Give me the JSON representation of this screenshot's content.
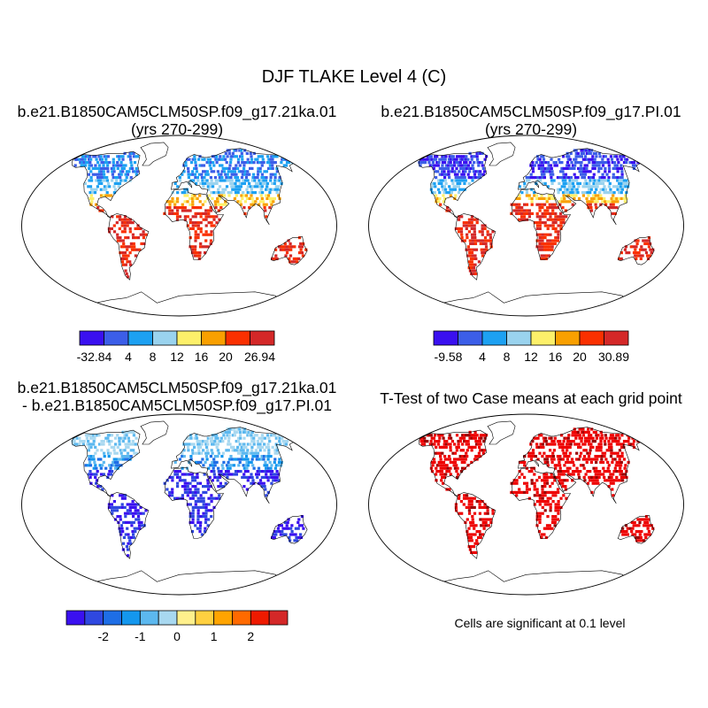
{
  "figure_title": "DJF TLAKE Level 4 (C)",
  "panels": [
    {
      "id": "p1",
      "title_line1": "b.e21.B1850CAM5CLM50SP.f09_g17.21ka.01",
      "title_line2": "(yrs 270-299)",
      "colorbar": {
        "colors": [
          "#3a10f0",
          "#3c5ee8",
          "#1da1f2",
          "#9ad3ee",
          "#fdf06a",
          "#f9a000",
          "#fa3000",
          "#d42828"
        ],
        "tick_labels": [
          "-32.84",
          "4",
          "8",
          "12",
          "16",
          "20",
          "26.94"
        ]
      }
    },
    {
      "id": "p2",
      "title_line1": "b.e21.B1850CAM5CLM50SP.f09_g17.PI.01",
      "title_line2": "(yrs 270-299)",
      "colorbar": {
        "colors": [
          "#3a10f0",
          "#3c5ee8",
          "#1da1f2",
          "#9ad3ee",
          "#fdf06a",
          "#f9a000",
          "#fa3000",
          "#d42828"
        ],
        "tick_labels": [
          "-9.58",
          "4",
          "8",
          "12",
          "16",
          "20",
          "30.89"
        ]
      }
    },
    {
      "id": "p3",
      "title_line1": "b.e21.B1850CAM5CLM50SP.f09_g17.21ka.01",
      "title_line2": "- b.e21.B1850CAM5CLM50SP.f09_g17.PI.01",
      "colorbar": {
        "colors": [
          "#3a10f0",
          "#2f48e0",
          "#1e6ee6",
          "#1497ee",
          "#5cb8ef",
          "#a8d8f0",
          "#fff08c",
          "#ffd040",
          "#ffa400",
          "#ff6a00",
          "#ee1a00",
          "#d42828"
        ],
        "tick_labels": [
          "-2",
          "-1",
          "0",
          "1",
          "2"
        ]
      }
    },
    {
      "id": "p4",
      "title_line1": "T-Test of two Case means at each grid point",
      "note": "Cells are significant at 0.1 level"
    }
  ]
}
